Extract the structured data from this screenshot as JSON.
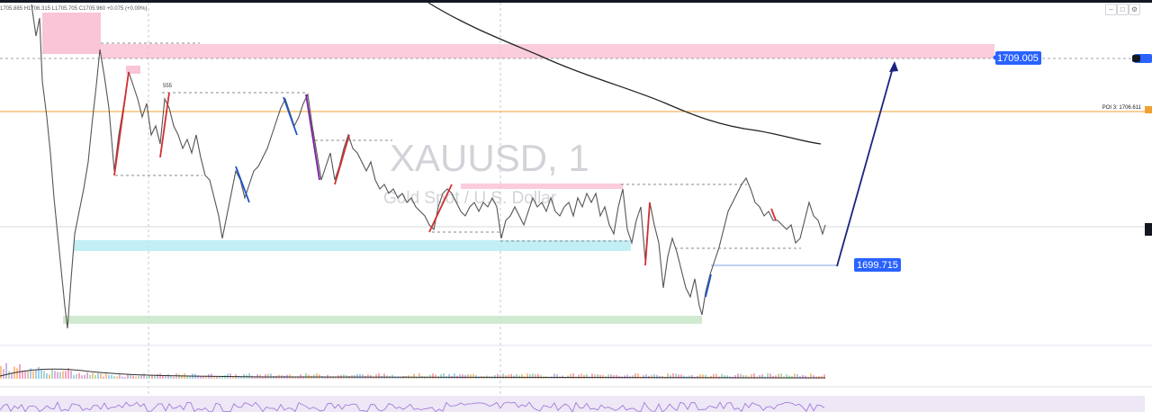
{
  "ohlc_header": "1705.885 H1706.315 L1705.705 C1705.960 +0.075 (+0.00%)",
  "watermark": {
    "symbol": "XAUUSD, 1",
    "description": "Gold Spot / U.S. Dollar"
  },
  "pattern_label": "555",
  "price_labels": {
    "target": "1709.005",
    "current_level": "1699.715",
    "poi": "POI 3: 1706.611"
  },
  "colors": {
    "supply_zone": "#f8bbd0",
    "demand_zone_blue": "#b2ebf2",
    "demand_zone_green": "#c8e6c9",
    "poi_line": "#f0a030",
    "label_blue": "#2962ff",
    "projection_arrow": "#1a237e",
    "candle": "#555555",
    "up_leg": "#1e56c8",
    "down_leg": "#d32f2f",
    "ma_line": "#222222",
    "oscillator_bg": "#ede7f6",
    "oscillator_line": "#9c6fd6"
  },
  "icons": {
    "toolbar": [
      "collapse-icon",
      "maximize-icon",
      "settings-icon"
    ],
    "price_scale_eye": "eye-icon"
  }
}
